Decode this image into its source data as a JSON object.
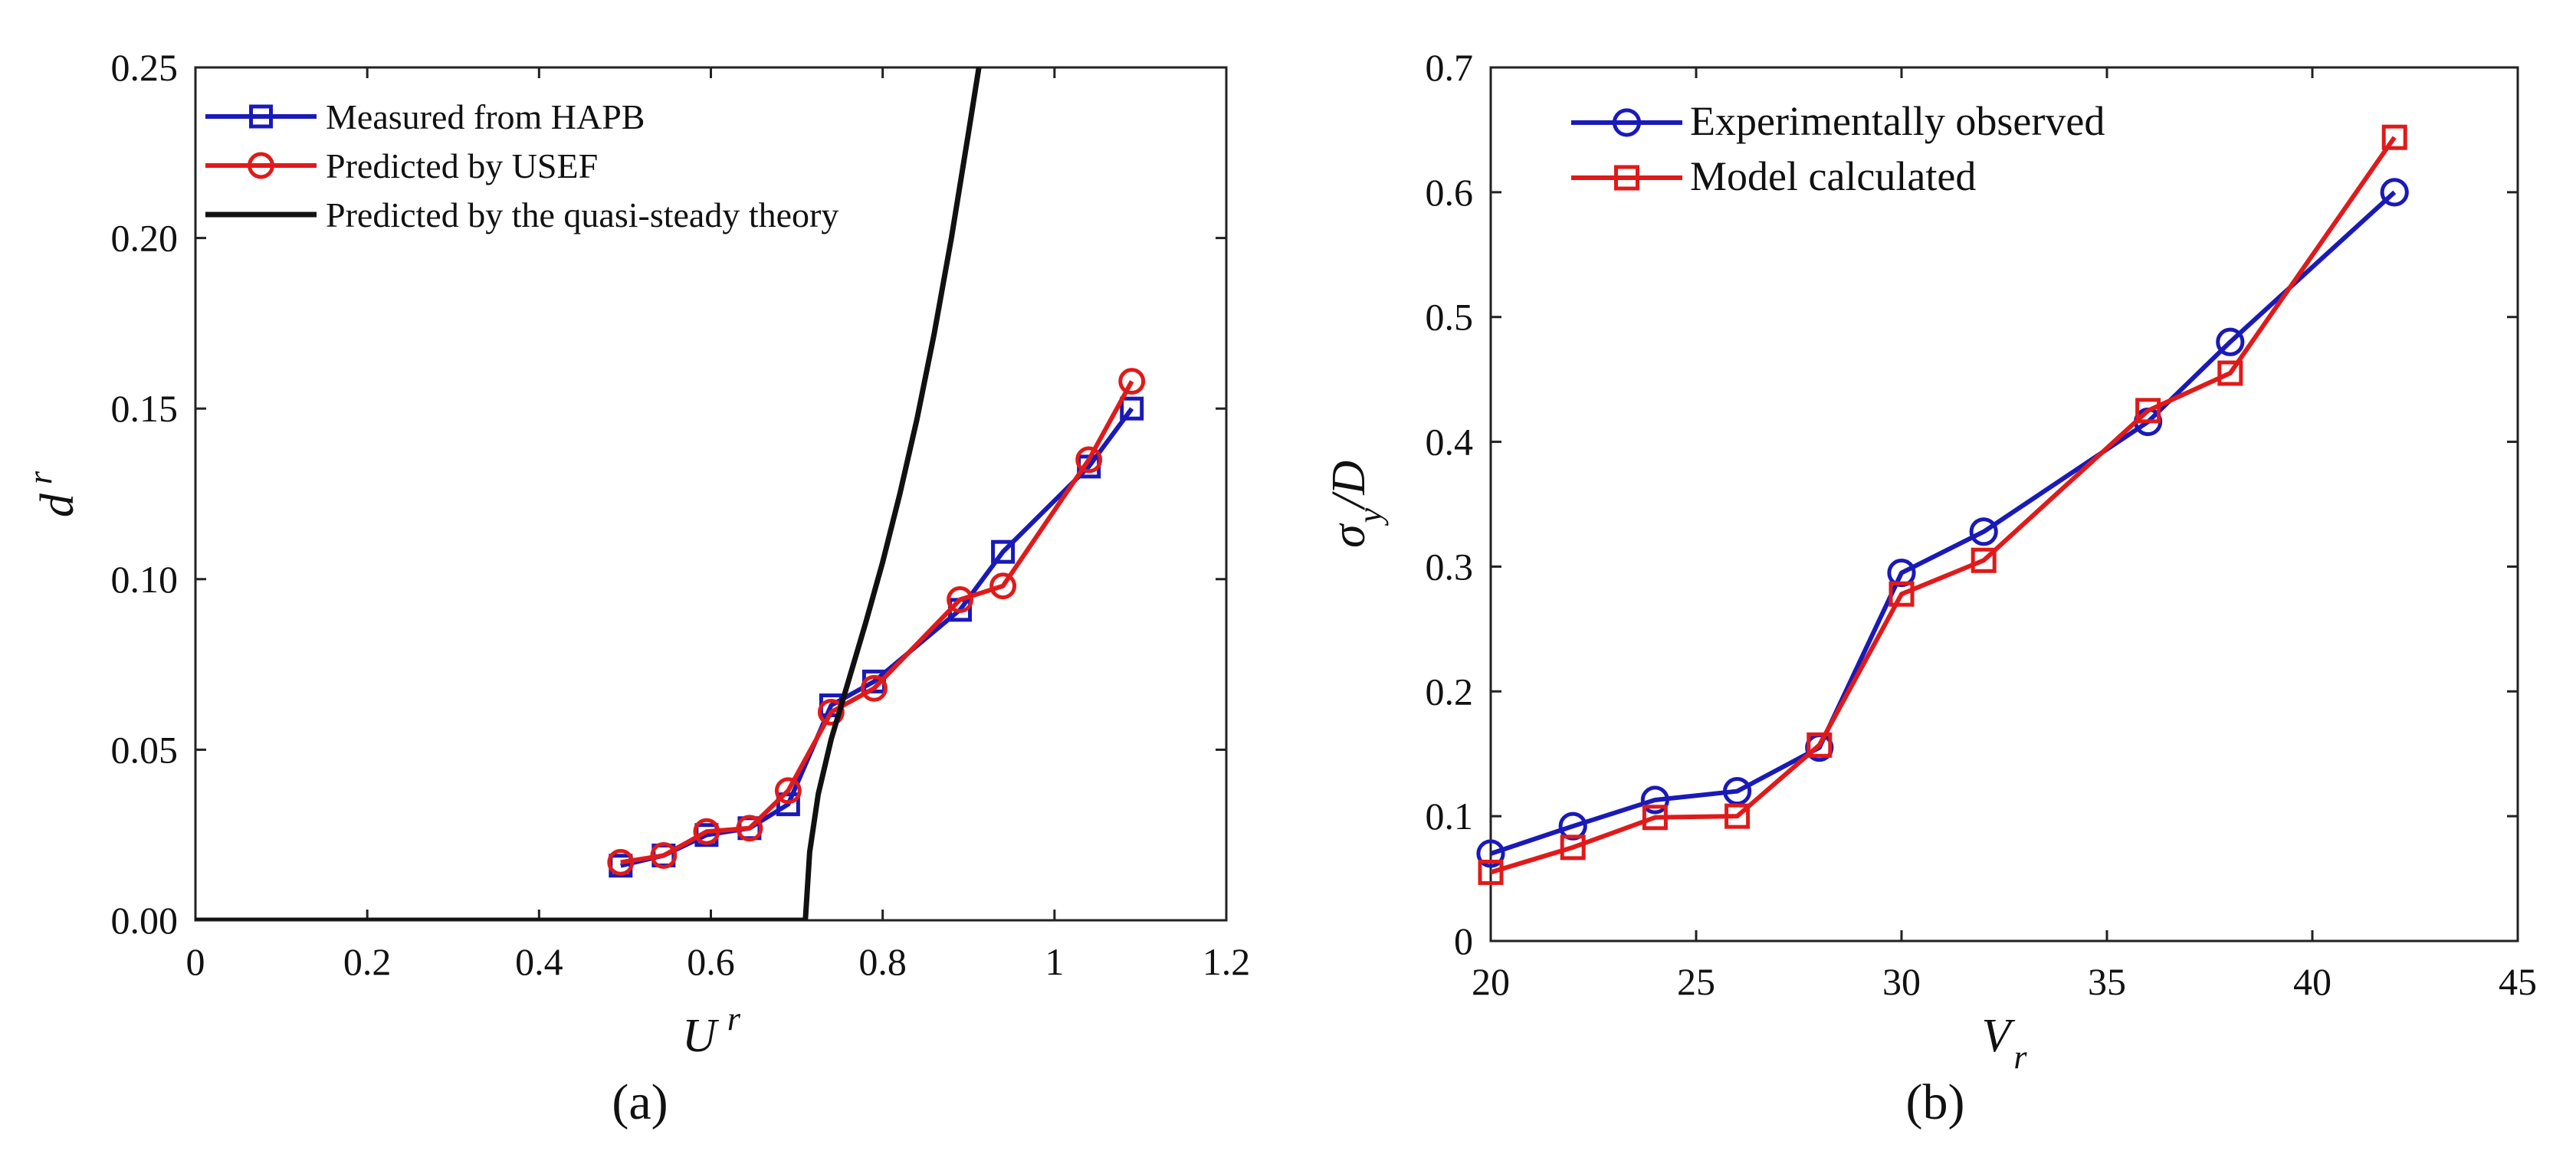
{
  "colors": {
    "blue": "#1a1ab8",
    "red": "#e01a1a",
    "black": "#111111",
    "axis": "#222222"
  },
  "chart_data": [
    {
      "id": "a",
      "type": "line",
      "panel_label": "(a)",
      "xlabel": {
        "main": "U",
        "sup": "r"
      },
      "ylabel": {
        "main": "d",
        "sup": "r"
      },
      "xlim": [
        0,
        1.2
      ],
      "ylim": [
        0,
        0.25
      ],
      "xticks": [
        0,
        0.2,
        0.4,
        0.6,
        0.8,
        1,
        1.2
      ],
      "xtick_labels": [
        "0",
        "0.2",
        "0.4",
        "0.6",
        "0.8",
        "1",
        "1.2"
      ],
      "yticks": [
        0,
        0.05,
        0.1,
        0.15,
        0.2,
        0.25
      ],
      "ytick_labels": [
        "0.00",
        "0.05",
        "0.10",
        "0.15",
        "0.20",
        "0.25"
      ],
      "legend_position": "top-left",
      "series": [
        {
          "name": "Measured from HAPB",
          "color": "#1a1ab8",
          "marker": "square",
          "x": [
            0.495,
            0.545,
            0.595,
            0.645,
            0.69,
            0.74,
            0.79,
            0.89,
            0.94,
            1.04,
            1.09
          ],
          "y": [
            0.016,
            0.019,
            0.025,
            0.027,
            0.034,
            0.063,
            0.07,
            0.091,
            0.108,
            0.133,
            0.15
          ]
        },
        {
          "name": "Predicted by USEF",
          "color": "#e01a1a",
          "marker": "circle",
          "x": [
            0.495,
            0.545,
            0.595,
            0.645,
            0.69,
            0.74,
            0.79,
            0.89,
            0.94,
            1.04,
            1.09
          ],
          "y": [
            0.017,
            0.019,
            0.026,
            0.027,
            0.038,
            0.061,
            0.068,
            0.094,
            0.098,
            0.135,
            0.158
          ]
        },
        {
          "name": "Predicted by the quasi-steady theory",
          "color": "#111111",
          "marker": "none",
          "x": [
            0,
            0.71,
            0.71,
            0.715,
            0.725,
            0.74,
            0.76,
            0.78,
            0.8,
            0.82,
            0.84,
            0.86,
            0.88,
            0.9,
            0.912
          ],
          "y": [
            0,
            0,
            0,
            0.02,
            0.037,
            0.053,
            0.07,
            0.087,
            0.105,
            0.125,
            0.147,
            0.172,
            0.2,
            0.231,
            0.25
          ]
        }
      ]
    },
    {
      "id": "b",
      "type": "line",
      "panel_label": "(b)",
      "xlabel": {
        "main": "V",
        "sub": "r"
      },
      "ylabel": {
        "main": "σ",
        "sub": "y",
        "rest": "/D"
      },
      "xlim": [
        20,
        45
      ],
      "ylim": [
        0,
        0.7
      ],
      "xticks": [
        20,
        25,
        30,
        35,
        40,
        45
      ],
      "xtick_labels": [
        "20",
        "25",
        "30",
        "35",
        "40",
        "45"
      ],
      "yticks": [
        0,
        0.1,
        0.2,
        0.3,
        0.4,
        0.5,
        0.6,
        0.7
      ],
      "ytick_labels": [
        "0",
        "0.1",
        "0.2",
        "0.3",
        "0.4",
        "0.5",
        "0.6",
        "0.7"
      ],
      "legend_position": "top-left",
      "series": [
        {
          "name": "Experimentally observed",
          "color": "#1a1ab8",
          "marker": "circle",
          "x": [
            20,
            22,
            24,
            26,
            28,
            30,
            32,
            36,
            38,
            42
          ],
          "y": [
            0.07,
            0.092,
            0.113,
            0.12,
            0.155,
            0.295,
            0.328,
            0.416,
            0.48,
            0.6
          ]
        },
        {
          "name": "Model calculated",
          "color": "#e01a1a",
          "marker": "square",
          "x": [
            20,
            22,
            24,
            26,
            28,
            30,
            32,
            36,
            38,
            42
          ],
          "y": [
            0.055,
            0.075,
            0.099,
            0.1,
            0.157,
            0.278,
            0.305,
            0.425,
            0.455,
            0.644
          ]
        }
      ]
    }
  ]
}
